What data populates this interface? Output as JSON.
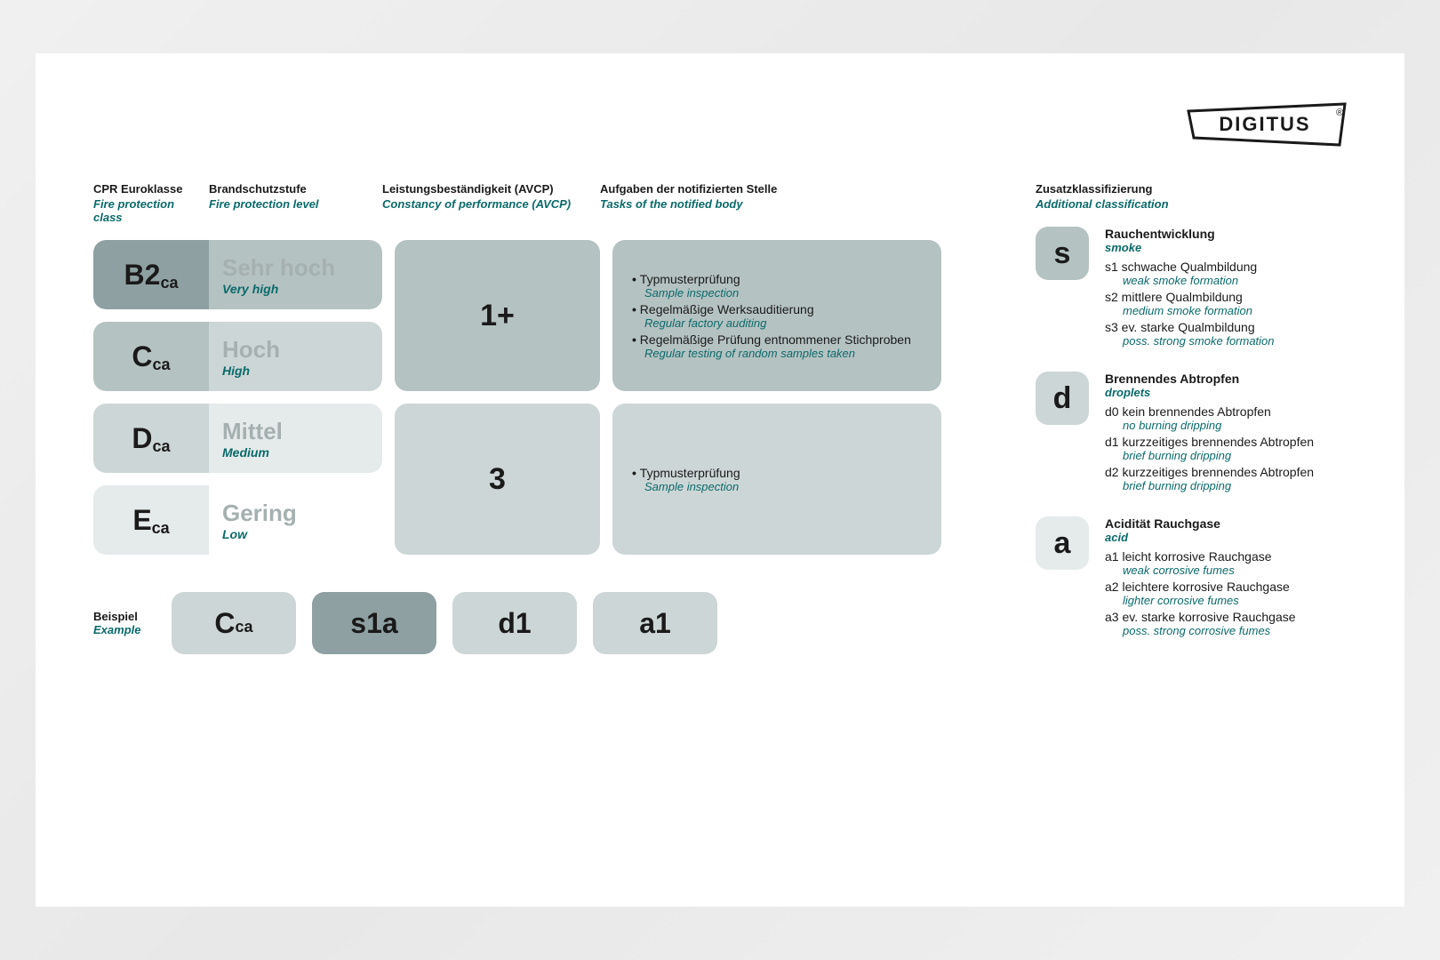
{
  "brand": "DIGITUS",
  "colors": {
    "teal_text": "#0b6a6a",
    "gray_dark_text": "#1a1a1a",
    "gray_level_text": "#a5b0b0",
    "shade4": "#8fa0a2",
    "shade3": "#b5c2c2",
    "shade2": "#cdd6d6",
    "shade1": "#e5eaea",
    "white": "#ffffff",
    "page_bg": "#eeeeee"
  },
  "columns": {
    "class": {
      "de": "CPR Euroklasse",
      "en": "Fire protection class"
    },
    "level": {
      "de": "Brandschutzstufe",
      "en": "Fire protection level"
    },
    "avcp": {
      "de": "Leistungsbeständigkeit (AVCP)",
      "en": "Constancy of performance (AVCP)"
    },
    "tasks": {
      "de": "Aufgaben der notifizierten Stelle",
      "en": "Tasks of the notified body"
    }
  },
  "additional": {
    "de": "Zusatzklassifizierung",
    "en": "Additional classification"
  },
  "groups": [
    {
      "avcp": "1+",
      "avcp_shade": "shade3",
      "tasks_shade": "shade3",
      "rows": [
        {
          "class_main": "B2",
          "class_sub": "ca",
          "class_shade": "shade4",
          "level_shade": "shade3",
          "level_text_shade": "gray_level_text",
          "level_de": "Sehr hoch",
          "level_en": "Very high"
        },
        {
          "class_main": "C",
          "class_sub": "ca",
          "class_shade": "shade3",
          "level_shade": "shade2",
          "level_text_shade": "gray_level_text",
          "level_de": "Hoch",
          "level_en": "High"
        }
      ],
      "tasks": [
        {
          "de": "Typmusterprüfung",
          "en": "Sample inspection"
        },
        {
          "de": "Regelmäßige Werksauditierung",
          "en": "Regular factory auditing"
        },
        {
          "de": "Regelmäßige Prüfung entnommener Stichproben",
          "en": "Regular testing of random samples taken"
        }
      ]
    },
    {
      "avcp": "3",
      "avcp_shade": "shade2",
      "tasks_shade": "shade2",
      "rows": [
        {
          "class_main": "D",
          "class_sub": "ca",
          "class_shade": "shade2",
          "level_shade": "shade1",
          "level_text_shade": "gray_level_text",
          "level_de": "Mittel",
          "level_en": "Medium"
        },
        {
          "class_main": "E",
          "class_sub": "ca",
          "class_shade": "shade1",
          "level_shade": "white",
          "level_text_shade": "gray_level_text",
          "level_de": "Gering",
          "level_en": "Low"
        }
      ],
      "tasks": [
        {
          "de": "Typmusterprüfung",
          "en": "Sample inspection"
        }
      ]
    }
  ],
  "example": {
    "label_de": "Beispiel",
    "label_en": "Example",
    "pills": [
      {
        "text": "C",
        "sub": "ca",
        "shade": "shade2"
      },
      {
        "text": "s1a",
        "shade": "shade4"
      },
      {
        "text": "d1",
        "shade": "shade2"
      },
      {
        "text": "a1",
        "shade": "shade2"
      }
    ]
  },
  "right_sections": [
    {
      "letter": "s",
      "shade": "shade3",
      "title_de": "Rauchentwicklung",
      "title_en": "smoke",
      "items": [
        {
          "de": "s1 schwache Qualmbildung",
          "en": "weak smoke formation"
        },
        {
          "de": "s2 mittlere Qualmbildung",
          "en": "medium smoke formation"
        },
        {
          "de": "s3 ev. starke Qualmbildung",
          "en": "poss. strong smoke formation"
        }
      ]
    },
    {
      "letter": "d",
      "shade": "shade2",
      "title_de": "Brennendes Abtropfen",
      "title_en": "droplets",
      "items": [
        {
          "de": "d0 kein brennendes Abtropfen",
          "en": "no burning dripping"
        },
        {
          "de": "d1 kurzzeitiges brennendes Abtropfen",
          "en": "brief burning dripping"
        },
        {
          "de": "d2 kurzzeitiges brennendes Abtropfen",
          "en": "brief burning dripping"
        }
      ]
    },
    {
      "letter": "a",
      "shade": "shade1",
      "title_de": "Acidität Rauchgase",
      "title_en": "acid",
      "items": [
        {
          "de": "a1 leicht korrosive Rauchgase",
          "en": "weak corrosive fumes"
        },
        {
          "de": "a2 leichtere korrosive Rauchgase",
          "en": "lighter corrosive fumes"
        },
        {
          "de": "a3 ev. starke korrosive Rauchgase",
          "en": "poss. strong corrosive fumes"
        }
      ]
    }
  ]
}
